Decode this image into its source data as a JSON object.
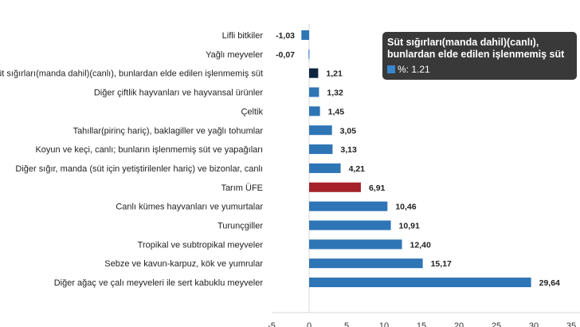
{
  "chart_data": {
    "type": "bar",
    "orientation": "horizontal",
    "categories": [
      "Lifli bitkiler",
      "Yağlı meyveler",
      "Süt sığırları(manda dahil)(canlı), bunlardan elde edilen işlenmemiş süt",
      "Diğer çiftlik hayvanları ve hayvansal ürünler",
      "Çeltik",
      "Tahıllar(pirinç hariç), baklagiller ve yağlı tohumlar",
      "Koyun ve keçi, canlı; bunların işlenmemiş süt ve yapağıları",
      "Diğer sığır, manda (süt için yetiştirilenler hariç) ve bizonlar, canlı",
      "Tarım ÜFE",
      "Canlı kümes hayvanları ve yumurtalar",
      "Turunçgiller",
      "Tropikal ve subtropikal meyveler",
      "Sebze ve kavun-karpuz, kök ve yumrular",
      "Diğer ağaç ve çalı meyveleri ile sert kabuklu meyveler"
    ],
    "values": [
      -1.03,
      -0.07,
      1.21,
      1.32,
      1.45,
      3.05,
      3.13,
      4.21,
      6.91,
      10.46,
      10.91,
      12.4,
      15.17,
      29.64
    ],
    "value_labels": [
      "-1,03",
      "-0,07",
      "1,21",
      "1,32",
      "1,45",
      "3,05",
      "3,13",
      "4,21",
      "6,91",
      "10,46",
      "10,91",
      "12,40",
      "15,17",
      "29,64"
    ],
    "highlight_category": "Tarım ÜFE",
    "colors": {
      "bar": "#2e75b6",
      "highlight": "#a5222a",
      "hovered": "#0d2540"
    },
    "hovered_category": "Süt sığırları(manda dahil)(canlı), bunlardan elde edilen işlenmemiş süt",
    "xlim": [
      -5,
      35
    ],
    "xticks": [
      "-5",
      "0",
      "5",
      "10",
      "15",
      "20",
      "25",
      "30",
      "35"
    ],
    "title": "",
    "xlabel": "",
    "ylabel": "",
    "grid": false
  },
  "tooltip": {
    "title": "Süt sığırları(manda dahil)(canlı), bunlardan elde edilen işlenmemiş süt",
    "value_text": "%: 1.21"
  }
}
